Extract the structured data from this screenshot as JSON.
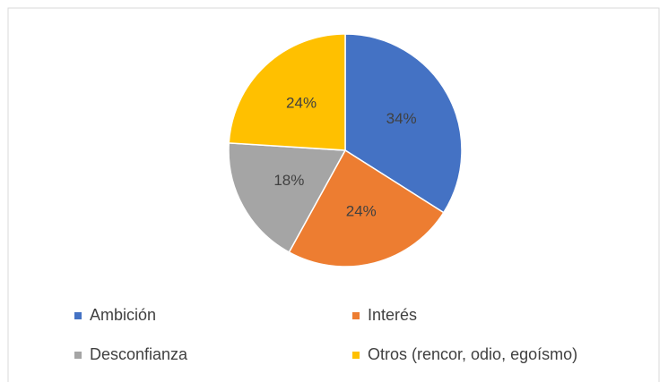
{
  "chart_data": {
    "type": "pie",
    "categories": [
      "Ambición",
      "Interés",
      "Desconfianza",
      "Otros (rencor, odio, egoísmo)"
    ],
    "values": [
      34,
      24,
      18,
      24
    ],
    "value_labels": [
      "34%",
      "24%",
      "18%",
      "24%"
    ],
    "colors": [
      "#4472c4",
      "#ed7d31",
      "#a5a5a5",
      "#ffc000"
    ],
    "legend": "bottom"
  }
}
